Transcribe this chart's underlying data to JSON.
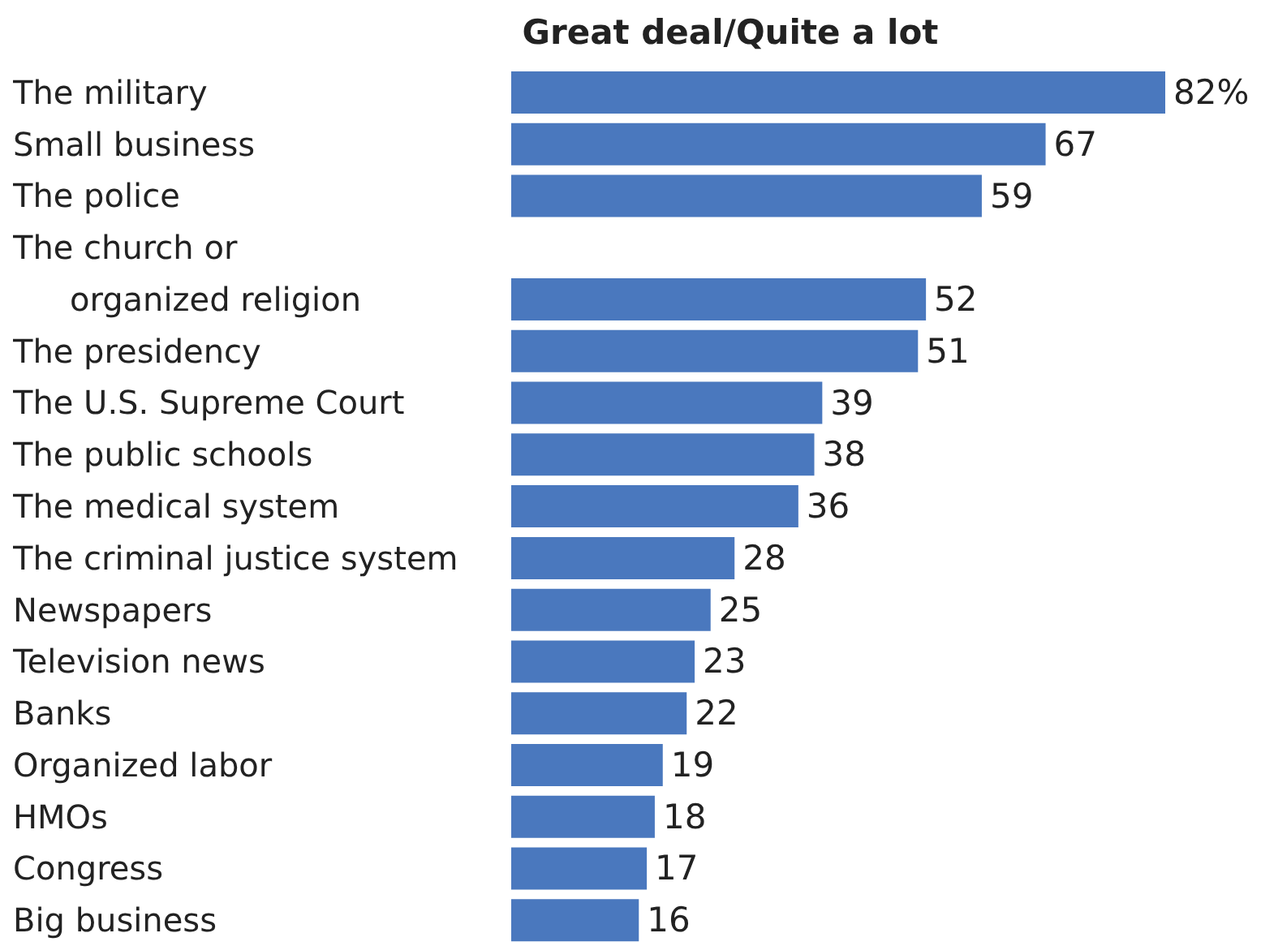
{
  "chart_data": {
    "type": "bar",
    "orientation": "horizontal",
    "title": "Great deal/Quite a lot",
    "categories": [
      "The military",
      "Small business",
      "The police",
      "The church or\norganized religion",
      "The presidency",
      "The U.S. Supreme Court",
      "The public schools",
      "The medical system",
      "The criminal justice system",
      "Newspapers",
      "Television news",
      "Banks",
      "Organized labor",
      "HMOs",
      "Congress",
      "Big business"
    ],
    "values": [
      82,
      67,
      59,
      52,
      51,
      39,
      38,
      36,
      28,
      25,
      23,
      22,
      19,
      18,
      17,
      16
    ],
    "value_labels": [
      "82%",
      "67",
      "59",
      "52",
      "51",
      "39",
      "38",
      "36",
      "28",
      "25",
      "23",
      "22",
      "19",
      "18",
      "17",
      "16"
    ],
    "color": "#4a78be",
    "tick_labels": "y",
    "grid": false,
    "legend": false
  }
}
